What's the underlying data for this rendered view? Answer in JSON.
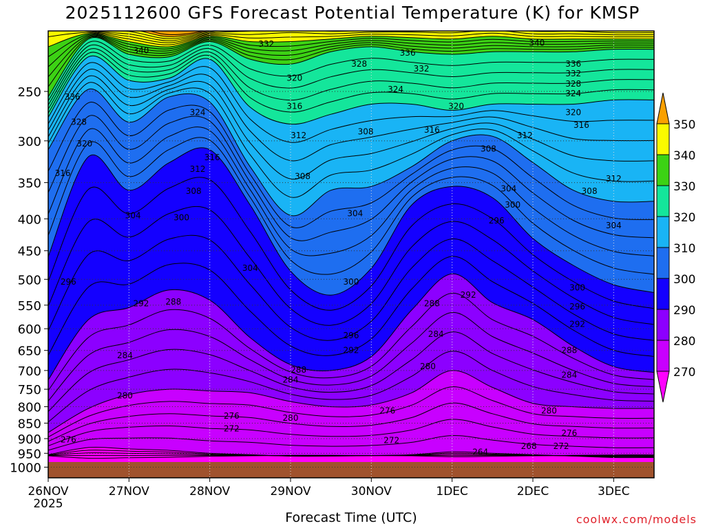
{
  "title": "2025112600 GFS Forecast Potential Temperature (K) for KMSP",
  "credit": "coolwx.com/models",
  "chart_data": {
    "type": "heatmap",
    "xlabel": "Forecast Time (UTC)",
    "ylabel": "",
    "x_ticks": [
      "26NOV",
      "27NOV",
      "28NOV",
      "29NOV",
      "30NOV",
      "1DEC",
      "2DEC",
      "3DEC"
    ],
    "x_year_label": "2025",
    "x_range_days": [
      0,
      7.5
    ],
    "y_ticks": [
      250,
      300,
      350,
      400,
      450,
      500,
      550,
      600,
      650,
      700,
      750,
      800,
      850,
      900,
      950,
      1000
    ],
    "y_range_hPa": [
      200,
      1040
    ],
    "y_scale": "log-pressure",
    "colorbar": {
      "labels": [
        270,
        280,
        290,
        300,
        310,
        320,
        330,
        340,
        350
      ],
      "bands": [
        {
          "from": 260,
          "to": 270,
          "color": "#ff00ff"
        },
        {
          "from": 270,
          "to": 280,
          "color": "#c800ff"
        },
        {
          "from": 280,
          "to": 290,
          "color": "#8c00ff"
        },
        {
          "from": 290,
          "to": 300,
          "color": "#1400ff"
        },
        {
          "from": 300,
          "to": 310,
          "color": "#1e6ef0"
        },
        {
          "from": 310,
          "to": 320,
          "color": "#19b4f5"
        },
        {
          "from": 320,
          "to": 330,
          "color": "#14e69b"
        },
        {
          "from": 330,
          "to": 340,
          "color": "#3cd214"
        },
        {
          "from": 340,
          "to": 350,
          "color": "#fafa00"
        },
        {
          "from": 350,
          "to": 360,
          "color": "#faa000"
        }
      ]
    },
    "ground_color": "#a0522d",
    "contour_interval_K": 2,
    "isentrope_levels_hPa": {
      "264": [
        958,
        958,
        958,
        958,
        958,
        958,
        958,
        958,
        958,
        958,
        958,
        958,
        958,
        958,
        958,
        958
      ],
      "270": [
        955,
        930,
        935,
        940,
        950,
        955,
        960,
        960,
        958,
        955,
        945,
        950,
        955,
        960,
        965,
        965
      ],
      "280": [
        880,
        805,
        765,
        750,
        755,
        760,
        785,
        800,
        795,
        760,
        700,
        745,
        790,
        800,
        805,
        805
      ],
      "290": [
        725,
        580,
        555,
        520,
        540,
        620,
        685,
        700,
        665,
        560,
        490,
        545,
        580,
        640,
        690,
        705
      ],
      "300": [
        460,
        318,
        360,
        325,
        310,
        380,
        485,
        530,
        480,
        380,
        355,
        370,
        430,
        475,
        510,
        525
      ],
      "310": [
        310,
        248,
        280,
        255,
        260,
        330,
        395,
        360,
        355,
        330,
        300,
        295,
        325,
        360,
        375,
        375
      ],
      "320": [
        275,
        220,
        240,
        238,
        222,
        265,
        282,
        272,
        262,
        262,
        268,
        262,
        262,
        262,
        258,
        258
      ],
      "330": [
        255,
        206,
        218,
        220,
        208,
        222,
        226,
        216,
        212,
        216,
        218,
        216,
        216,
        216,
        214,
        214
      ],
      "340": [
        212,
        202,
        208,
        212,
        204,
        208,
        208,
        206,
        204,
        205,
        206,
        204,
        206,
        206,
        206,
        206
      ]
    },
    "contour_labels": [
      {
        "text": "340",
        "t": 1.15,
        "p": 215
      },
      {
        "text": "332",
        "t": 2.7,
        "p": 210
      },
      {
        "text": "336",
        "t": 4.45,
        "p": 217
      },
      {
        "text": "340",
        "t": 6.05,
        "p": 209
      },
      {
        "text": "332",
        "t": 4.62,
        "p": 230
      },
      {
        "text": "328",
        "t": 3.85,
        "p": 226
      },
      {
        "text": "336",
        "t": 6.5,
        "p": 226
      },
      {
        "text": "332",
        "t": 6.5,
        "p": 234
      },
      {
        "text": "328",
        "t": 6.5,
        "p": 243
      },
      {
        "text": "324",
        "t": 6.5,
        "p": 252
      },
      {
        "text": "324",
        "t": 4.3,
        "p": 248
      },
      {
        "text": "336",
        "t": 0.3,
        "p": 255
      },
      {
        "text": "320",
        "t": 3.05,
        "p": 238
      },
      {
        "text": "316",
        "t": 3.05,
        "p": 264
      },
      {
        "text": "320",
        "t": 5.05,
        "p": 264
      },
      {
        "text": "320",
        "t": 6.5,
        "p": 270
      },
      {
        "text": "324",
        "t": 1.85,
        "p": 270
      },
      {
        "text": "328",
        "t": 0.38,
        "p": 280
      },
      {
        "text": "316",
        "t": 4.75,
        "p": 288
      },
      {
        "text": "316",
        "t": 6.6,
        "p": 283
      },
      {
        "text": "308",
        "t": 3.93,
        "p": 290
      },
      {
        "text": "312",
        "t": 3.1,
        "p": 294
      },
      {
        "text": "312",
        "t": 5.9,
        "p": 294
      },
      {
        "text": "320",
        "t": 0.45,
        "p": 303
      },
      {
        "text": "316",
        "t": 2.03,
        "p": 319
      },
      {
        "text": "308",
        "t": 5.45,
        "p": 309
      },
      {
        "text": "312",
        "t": 1.85,
        "p": 333
      },
      {
        "text": "316",
        "t": 0.18,
        "p": 338
      },
      {
        "text": "308",
        "t": 3.15,
        "p": 342
      },
      {
        "text": "312",
        "t": 7.0,
        "p": 345
      },
      {
        "text": "304",
        "t": 5.7,
        "p": 358
      },
      {
        "text": "308",
        "t": 1.8,
        "p": 361
      },
      {
        "text": "308",
        "t": 6.7,
        "p": 361
      },
      {
        "text": "300",
        "t": 5.75,
        "p": 380
      },
      {
        "text": "304",
        "t": 3.8,
        "p": 392
      },
      {
        "text": "304",
        "t": 1.05,
        "p": 395
      },
      {
        "text": "300",
        "t": 1.65,
        "p": 398
      },
      {
        "text": "296",
        "t": 5.55,
        "p": 403
      },
      {
        "text": "304",
        "t": 7.0,
        "p": 410
      },
      {
        "text": "304",
        "t": 2.5,
        "p": 480
      },
      {
        "text": "296",
        "t": 0.25,
        "p": 505
      },
      {
        "text": "300",
        "t": 3.75,
        "p": 505
      },
      {
        "text": "300",
        "t": 6.55,
        "p": 516
      },
      {
        "text": "292",
        "t": 5.2,
        "p": 530
      },
      {
        "text": "288",
        "t": 1.55,
        "p": 543
      },
      {
        "text": "292",
        "t": 1.15,
        "p": 547
      },
      {
        "text": "288",
        "t": 4.75,
        "p": 547
      },
      {
        "text": "296",
        "t": 6.55,
        "p": 553
      },
      {
        "text": "292",
        "t": 6.55,
        "p": 590
      },
      {
        "text": "284",
        "t": 4.8,
        "p": 612
      },
      {
        "text": "296",
        "t": 3.75,
        "p": 615
      },
      {
        "text": "292",
        "t": 3.75,
        "p": 650
      },
      {
        "text": "288",
        "t": 6.45,
        "p": 650
      },
      {
        "text": "284",
        "t": 0.95,
        "p": 662
      },
      {
        "text": "288",
        "t": 3.1,
        "p": 698
      },
      {
        "text": "280",
        "t": 4.7,
        "p": 690
      },
      {
        "text": "284",
        "t": 6.45,
        "p": 712
      },
      {
        "text": "284",
        "t": 3.0,
        "p": 725
      },
      {
        "text": "280",
        "t": 0.95,
        "p": 768
      },
      {
        "text": "276",
        "t": 4.2,
        "p": 812
      },
      {
        "text": "280",
        "t": 6.2,
        "p": 812
      },
      {
        "text": "276",
        "t": 2.27,
        "p": 828
      },
      {
        "text": "280",
        "t": 3.0,
        "p": 834
      },
      {
        "text": "272",
        "t": 2.27,
        "p": 867
      },
      {
        "text": "276",
        "t": 6.45,
        "p": 882
      },
      {
        "text": "276",
        "t": 0.25,
        "p": 903
      },
      {
        "text": "272",
        "t": 4.25,
        "p": 906
      },
      {
        "text": "268",
        "t": 5.95,
        "p": 925
      },
      {
        "text": "272",
        "t": 6.35,
        "p": 925
      },
      {
        "text": "264",
        "t": 5.35,
        "p": 946
      }
    ]
  }
}
